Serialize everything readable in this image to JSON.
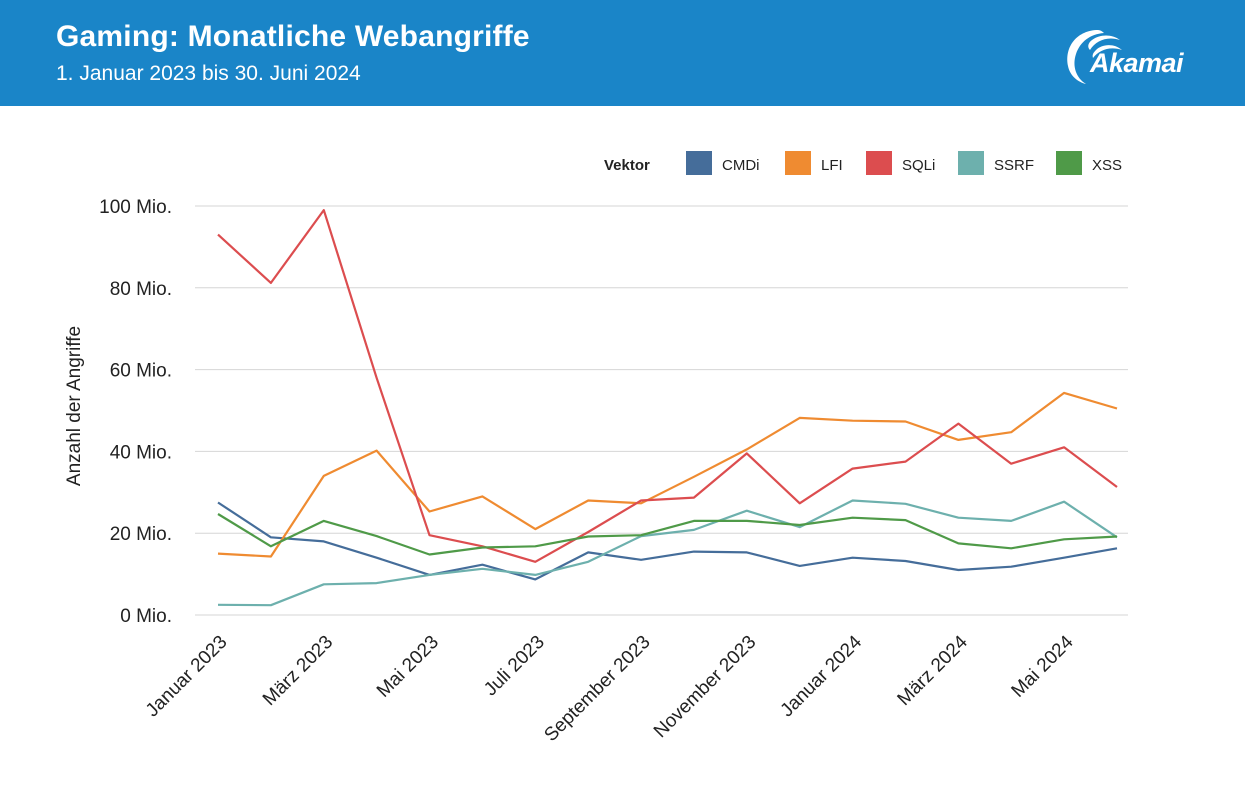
{
  "header": {
    "title": "Gaming: Monatliche Webangriffe",
    "subtitle": "1. Januar 2023 bis 30. Juni 2024",
    "logo_text": "Akamai",
    "background_color": "#1a85c8"
  },
  "chart_data": {
    "type": "line",
    "ylabel": "Anzahl der Angriffe",
    "ylim": [
      0,
      100
    ],
    "y_ticks": [
      {
        "value": 0,
        "label": "0 Mio."
      },
      {
        "value": 20,
        "label": "20 Mio."
      },
      {
        "value": 40,
        "label": "40 Mio."
      },
      {
        "value": 60,
        "label": "60 Mio."
      },
      {
        "value": 80,
        "label": "80 Mio."
      },
      {
        "value": 100,
        "label": "100 Mio."
      }
    ],
    "x": [
      "2023-01",
      "2023-02",
      "2023-03",
      "2023-04",
      "2023-05",
      "2023-06",
      "2023-07",
      "2023-08",
      "2023-09",
      "2023-10",
      "2023-11",
      "2023-12",
      "2024-01",
      "2024-02",
      "2024-03",
      "2024-04",
      "2024-05",
      "2024-06"
    ],
    "x_tick_labels": [
      {
        "index": 0,
        "label": "Januar 2023"
      },
      {
        "index": 2,
        "label": "März 2023"
      },
      {
        "index": 4,
        "label": "Mai 2023"
      },
      {
        "index": 6,
        "label": "Juli 2023"
      },
      {
        "index": 8,
        "label": "September 2023"
      },
      {
        "index": 10,
        "label": "November 2023"
      },
      {
        "index": 12,
        "label": "Januar 2024"
      },
      {
        "index": 14,
        "label": "März 2024"
      },
      {
        "index": 16,
        "label": "Mai 2024"
      }
    ],
    "grid": true,
    "legend_title": "Vektor",
    "legend_position": "top-right",
    "series": [
      {
        "name": "CMDi",
        "color": "#456d9a",
        "values": [
          27.5,
          19.0,
          18.0,
          14.0,
          9.8,
          12.3,
          8.7,
          15.3,
          13.5,
          15.5,
          15.3,
          12.0,
          14.0,
          13.2,
          11.0,
          11.8,
          14.0,
          16.3
        ]
      },
      {
        "name": "LFI",
        "color": "#ef8b31",
        "values": [
          15.0,
          14.3,
          34.0,
          40.2,
          25.3,
          29.0,
          21.0,
          28.0,
          27.3,
          33.8,
          40.5,
          48.2,
          47.5,
          47.3,
          42.8,
          44.7,
          54.3,
          50.5
        ]
      },
      {
        "name": "SQLi",
        "color": "#dc4d4f",
        "values": [
          93.0,
          81.2,
          99.0,
          58.0,
          19.5,
          16.8,
          13.0,
          20.3,
          28.0,
          28.7,
          39.5,
          27.3,
          35.8,
          37.5,
          46.8,
          37.0,
          41.0,
          31.3
        ]
      },
      {
        "name": "SSRF",
        "color": "#6db0ad",
        "values": [
          2.5,
          2.4,
          7.5,
          7.8,
          9.8,
          11.3,
          9.8,
          13.0,
          19.3,
          20.8,
          25.5,
          21.5,
          28.0,
          27.2,
          23.8,
          23.0,
          27.7,
          19.0
        ]
      },
      {
        "name": "XSS",
        "color": "#4f9a48",
        "values": [
          24.7,
          16.8,
          23.0,
          19.3,
          14.8,
          16.5,
          16.8,
          19.2,
          19.5,
          23.0,
          23.0,
          22.0,
          23.8,
          23.2,
          17.5,
          16.3,
          18.5,
          19.2
        ]
      }
    ]
  }
}
